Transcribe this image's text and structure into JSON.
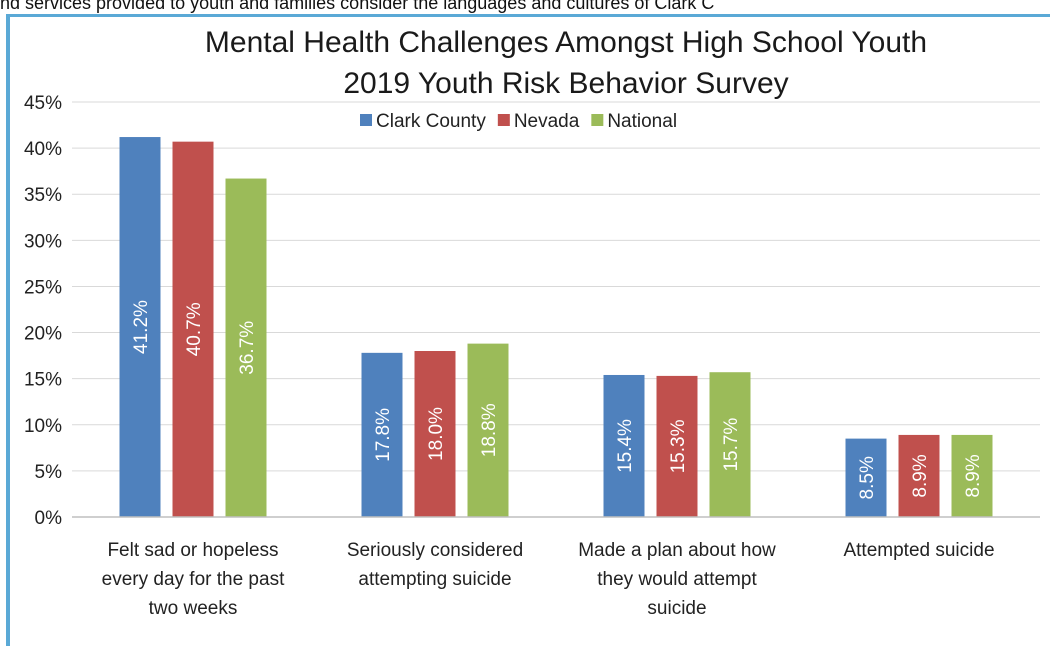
{
  "page": {
    "top_text": "nd services provided to youth and families consider the languages and cultures of Clark C"
  },
  "chart_data": {
    "type": "bar",
    "title": "Mental Health Challenges Amongst High School Youth",
    "subtitle": "2019 Youth Risk Behavior Survey",
    "categories": [
      [
        "Felt sad or hopeless",
        "every day for the past",
        "two weeks"
      ],
      [
        "Seriously considered",
        "attempting suicide"
      ],
      [
        "Made a plan about how",
        "they would attempt",
        "suicide"
      ],
      [
        "Attempted suicide"
      ]
    ],
    "series": [
      {
        "name": "Clark County",
        "color": "#4f81bd",
        "values": [
          41.2,
          17.8,
          15.4,
          8.5
        ],
        "labels": [
          "41.2%",
          "17.8%",
          "15.4%",
          "8.5%"
        ]
      },
      {
        "name": "Nevada",
        "color": "#c0504d",
        "values": [
          40.7,
          18.0,
          15.3,
          8.9
        ],
        "labels": [
          "40.7%",
          "18.0%",
          "15.3%",
          "8.9%"
        ]
      },
      {
        "name": "National",
        "color": "#9bbb59",
        "values": [
          36.7,
          18.8,
          15.7,
          8.9
        ],
        "labels": [
          "36.7%",
          "18.8%",
          "15.7%",
          "8.9%"
        ]
      }
    ],
    "y_ticks": [
      "0%",
      "5%",
      "10%",
      "15%",
      "20%",
      "25%",
      "30%",
      "35%",
      "40%",
      "45%"
    ],
    "ylim": [
      0,
      45
    ],
    "grid": true,
    "legend_position": "top-center"
  }
}
